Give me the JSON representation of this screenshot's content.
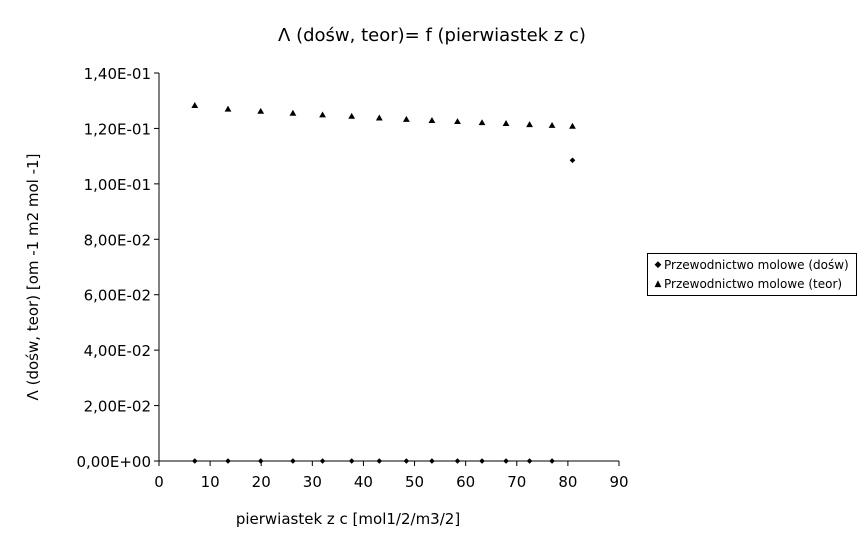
{
  "chart_data": {
    "type": "scatter",
    "title": "Λ (dośw, teor)= f (pierwiastek z c)",
    "xlabel": "pierwiastek z c [mol1/2/m3/2]",
    "ylabel": "Λ (dośw, teor) [om -1 m2 mol -1]",
    "xlim": [
      0,
      90
    ],
    "ylim": [
      0,
      0.14
    ],
    "x_ticks": [
      0,
      10,
      20,
      30,
      40,
      50,
      60,
      70,
      80,
      90
    ],
    "x_tick_labels": [
      "0",
      "10",
      "20",
      "30",
      "40",
      "50",
      "60",
      "70",
      "80",
      "90"
    ],
    "y_ticks": [
      0,
      0.02,
      0.04,
      0.06,
      0.08,
      0.1,
      0.12,
      0.14
    ],
    "y_tick_labels": [
      "0,00E+00",
      "2,00E-02",
      "4,00E-02",
      "6,00E-02",
      "8,00E-02",
      "1,00E-01",
      "1,20E-01",
      "1,40E-01"
    ],
    "grid": false,
    "legend_position": "right",
    "series": [
      {
        "name": "Przewodnictwo molowe (dośw)",
        "marker": "diamond",
        "color": "#000000",
        "x": [
          7,
          13.5,
          19.9,
          26.2,
          32,
          37.7,
          43.1,
          48.4,
          53.4,
          58.4,
          63.2,
          67.9,
          72.5,
          76.9,
          80.9
        ],
        "y": [
          0,
          0,
          0,
          0,
          0,
          0,
          0,
          0,
          0,
          0,
          0,
          0,
          0,
          0,
          0.1085
        ]
      },
      {
        "name": "Przewodnictwo molowe (teor)",
        "marker": "triangle",
        "color": "#000000",
        "x": [
          7,
          13.5,
          19.9,
          26.2,
          32,
          37.7,
          43.1,
          48.4,
          53.4,
          58.4,
          63.2,
          67.9,
          72.5,
          76.9,
          80.9
        ],
        "y": [
          0.1283,
          0.127,
          0.1262,
          0.1255,
          0.1249,
          0.1244,
          0.1238,
          0.1233,
          0.1229,
          0.1225,
          0.1221,
          0.1218,
          0.1214,
          0.1211,
          0.1208
        ]
      }
    ]
  }
}
